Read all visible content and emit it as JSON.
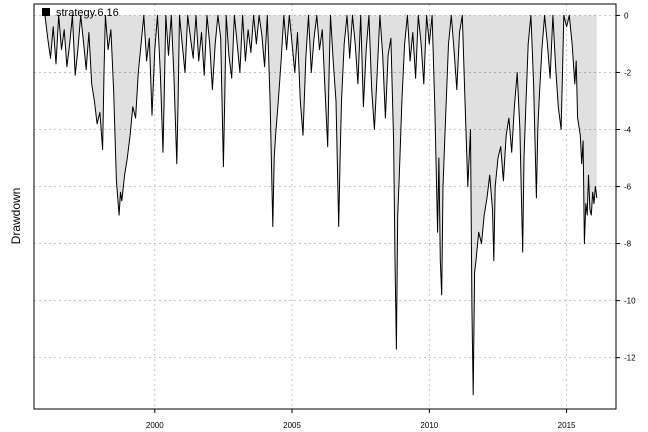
{
  "chart_data": {
    "type": "area",
    "ylabel": "Drawdown",
    "xlabel": "",
    "title": "",
    "legend": {
      "label": "strategy.6.16",
      "position": "top-left",
      "color": "#000000"
    },
    "x_range": [
      1995.6,
      2016.8
    ],
    "ylim": [
      -13.8,
      0.4
    ],
    "x_ticks": [
      2000,
      2005,
      2010,
      2015
    ],
    "y_ticks": [
      0,
      -2,
      -4,
      -6,
      -8,
      -10,
      -12
    ],
    "grid": true,
    "series": [
      {
        "name": "strategy.6.16",
        "color": "#000000",
        "points": [
          [
            1996.0,
            0
          ],
          [
            1996.1,
            -0.8
          ],
          [
            1996.2,
            -1.5
          ],
          [
            1996.3,
            -0.4
          ],
          [
            1996.4,
            -1.7
          ],
          [
            1996.5,
            0
          ],
          [
            1996.6,
            -1.2
          ],
          [
            1996.7,
            -0.5
          ],
          [
            1996.8,
            -1.8
          ],
          [
            1996.9,
            -1.0
          ],
          [
            1997.0,
            0
          ],
          [
            1997.1,
            -2.1
          ],
          [
            1997.2,
            -1.2
          ],
          [
            1997.3,
            0
          ],
          [
            1997.4,
            -0.9
          ],
          [
            1997.5,
            -1.9
          ],
          [
            1997.6,
            -0.6
          ],
          [
            1997.7,
            -2.4
          ],
          [
            1997.8,
            -3.0
          ],
          [
            1997.9,
            -3.8
          ],
          [
            1998.0,
            -3.4
          ],
          [
            1998.1,
            -4.7
          ],
          [
            1998.15,
            -2.0
          ],
          [
            1998.2,
            0
          ],
          [
            1998.3,
            -1.2
          ],
          [
            1998.4,
            -0.5
          ],
          [
            1998.5,
            -2.6
          ],
          [
            1998.6,
            -5.8
          ],
          [
            1998.7,
            -7.0
          ],
          [
            1998.75,
            -6.2
          ],
          [
            1998.8,
            -6.5
          ],
          [
            1998.9,
            -5.6
          ],
          [
            1999.0,
            -5.0
          ],
          [
            1999.1,
            -4.2
          ],
          [
            1999.2,
            -3.2
          ],
          [
            1999.3,
            -3.6
          ],
          [
            1999.4,
            -2.0
          ],
          [
            1999.5,
            -1.0
          ],
          [
            1999.6,
            0
          ],
          [
            1999.7,
            -1.6
          ],
          [
            1999.8,
            -0.8
          ],
          [
            1999.9,
            -3.5
          ],
          [
            2000.0,
            -1.2
          ],
          [
            2000.1,
            0
          ],
          [
            2000.2,
            -2.0
          ],
          [
            2000.3,
            -4.8
          ],
          [
            2000.35,
            -2.5
          ],
          [
            2000.4,
            0
          ],
          [
            2000.5,
            -1.4
          ],
          [
            2000.6,
            0
          ],
          [
            2000.7,
            -2.2
          ],
          [
            2000.8,
            -5.2
          ],
          [
            2000.85,
            -3.0
          ],
          [
            2000.9,
            0
          ],
          [
            2001.0,
            -1.0
          ],
          [
            2001.1,
            -2.0
          ],
          [
            2001.2,
            0
          ],
          [
            2001.3,
            -0.8
          ],
          [
            2001.4,
            -1.5
          ],
          [
            2001.5,
            0
          ],
          [
            2001.6,
            -1.6
          ],
          [
            2001.7,
            -0.6
          ],
          [
            2001.8,
            -2.1
          ],
          [
            2001.9,
            0
          ],
          [
            2002.0,
            -1.0
          ],
          [
            2002.1,
            -2.6
          ],
          [
            2002.2,
            -1.0
          ],
          [
            2002.3,
            0
          ],
          [
            2002.4,
            -0.8
          ],
          [
            2002.5,
            -5.3
          ],
          [
            2002.55,
            -2.8
          ],
          [
            2002.6,
            0
          ],
          [
            2002.7,
            -1.4
          ],
          [
            2002.8,
            -2.2
          ],
          [
            2002.9,
            0
          ],
          [
            2003.0,
            -1.0
          ],
          [
            2003.1,
            -2.0
          ],
          [
            2003.2,
            0
          ],
          [
            2003.3,
            -1.6
          ],
          [
            2003.4,
            -0.5
          ],
          [
            2003.5,
            -1.3
          ],
          [
            2003.6,
            0
          ],
          [
            2003.7,
            -1.0
          ],
          [
            2003.8,
            0
          ],
          [
            2003.9,
            -0.7
          ],
          [
            2004.0,
            -1.8
          ],
          [
            2004.1,
            0
          ],
          [
            2004.2,
            -3.0
          ],
          [
            2004.3,
            -7.4
          ],
          [
            2004.35,
            -5.0
          ],
          [
            2004.4,
            -4.2
          ],
          [
            2004.5,
            -3.0
          ],
          [
            2004.6,
            -1.6
          ],
          [
            2004.7,
            0
          ],
          [
            2004.8,
            -1.2
          ],
          [
            2004.9,
            0
          ],
          [
            2005.0,
            -1.0
          ],
          [
            2005.1,
            -2.0
          ],
          [
            2005.2,
            -0.6
          ],
          [
            2005.3,
            -3.0
          ],
          [
            2005.4,
            -4.2
          ],
          [
            2005.5,
            -1.5
          ],
          [
            2005.6,
            0
          ],
          [
            2005.7,
            -2.0
          ],
          [
            2005.8,
            -0.8
          ],
          [
            2005.9,
            0
          ],
          [
            2006.0,
            -1.2
          ],
          [
            2006.1,
            -0.5
          ],
          [
            2006.2,
            -2.6
          ],
          [
            2006.3,
            -4.6
          ],
          [
            2006.35,
            -2.0
          ],
          [
            2006.4,
            0
          ],
          [
            2006.5,
            -1.6
          ],
          [
            2006.6,
            -3.0
          ],
          [
            2006.7,
            -7.4
          ],
          [
            2006.75,
            -5.0
          ],
          [
            2006.8,
            -3.0
          ],
          [
            2006.9,
            -1.0
          ],
          [
            2007.0,
            0
          ],
          [
            2007.1,
            -1.5
          ],
          [
            2007.2,
            0
          ],
          [
            2007.3,
            -1.0
          ],
          [
            2007.4,
            -2.4
          ],
          [
            2007.5,
            0
          ],
          [
            2007.6,
            -3.2
          ],
          [
            2007.7,
            -1.2
          ],
          [
            2007.8,
            0
          ],
          [
            2007.9,
            -2.6
          ],
          [
            2008.0,
            -4.0
          ],
          [
            2008.1,
            -2.0
          ],
          [
            2008.2,
            0
          ],
          [
            2008.3,
            -1.4
          ],
          [
            2008.4,
            -3.6
          ],
          [
            2008.5,
            -1.4
          ],
          [
            2008.6,
            -0.8
          ],
          [
            2008.7,
            -4.4
          ],
          [
            2008.75,
            -8.6
          ],
          [
            2008.8,
            -11.7
          ],
          [
            2008.85,
            -7.0
          ],
          [
            2008.9,
            -5.8
          ],
          [
            2009.0,
            -3.0
          ],
          [
            2009.1,
            -1.0
          ],
          [
            2009.2,
            0
          ],
          [
            2009.3,
            -1.6
          ],
          [
            2009.4,
            -0.6
          ],
          [
            2009.5,
            -2.2
          ],
          [
            2009.6,
            0
          ],
          [
            2009.7,
            -1.0
          ],
          [
            2009.8,
            -2.4
          ],
          [
            2009.9,
            0
          ],
          [
            2010.0,
            -1.0
          ],
          [
            2010.1,
            0
          ],
          [
            2010.2,
            -3.2
          ],
          [
            2010.3,
            -7.6
          ],
          [
            2010.35,
            -5.0
          ],
          [
            2010.4,
            -8.6
          ],
          [
            2010.45,
            -9.8
          ],
          [
            2010.5,
            -6.0
          ],
          [
            2010.6,
            -3.4
          ],
          [
            2010.7,
            -1.0
          ],
          [
            2010.8,
            0
          ],
          [
            2010.9,
            -1.2
          ],
          [
            2011.0,
            -2.6
          ],
          [
            2011.1,
            -0.6
          ],
          [
            2011.2,
            0
          ],
          [
            2011.3,
            -3.0
          ],
          [
            2011.4,
            -6.0
          ],
          [
            2011.5,
            -4.0
          ],
          [
            2011.55,
            -10.2
          ],
          [
            2011.6,
            -13.3
          ],
          [
            2011.65,
            -9.0
          ],
          [
            2011.7,
            -8.6
          ],
          [
            2011.8,
            -7.6
          ],
          [
            2011.9,
            -8.0
          ],
          [
            2012.0,
            -7.0
          ],
          [
            2012.1,
            -6.4
          ],
          [
            2012.2,
            -5.6
          ],
          [
            2012.3,
            -6.8
          ],
          [
            2012.35,
            -8.6
          ],
          [
            2012.4,
            -6.0
          ],
          [
            2012.5,
            -5.0
          ],
          [
            2012.6,
            -4.6
          ],
          [
            2012.7,
            -5.8
          ],
          [
            2012.8,
            -4.2
          ],
          [
            2012.9,
            -3.6
          ],
          [
            2013.0,
            -4.8
          ],
          [
            2013.1,
            -3.2
          ],
          [
            2013.2,
            -2.0
          ],
          [
            2013.3,
            -4.0
          ],
          [
            2013.35,
            -6.2
          ],
          [
            2013.4,
            -8.3
          ],
          [
            2013.45,
            -5.0
          ],
          [
            2013.5,
            -3.6
          ],
          [
            2013.6,
            -1.0
          ],
          [
            2013.7,
            0
          ],
          [
            2013.8,
            -2.4
          ],
          [
            2013.9,
            -6.4
          ],
          [
            2013.95,
            -4.0
          ],
          [
            2014.0,
            -3.0
          ],
          [
            2014.1,
            -1.2
          ],
          [
            2014.2,
            0
          ],
          [
            2014.3,
            -1.0
          ],
          [
            2014.4,
            -2.2
          ],
          [
            2014.5,
            0
          ],
          [
            2014.6,
            -1.8
          ],
          [
            2014.7,
            -3.2
          ],
          [
            2014.8,
            -4.0
          ],
          [
            2014.85,
            -2.0
          ],
          [
            2014.9,
            0
          ],
          [
            2015.0,
            -0.4
          ],
          [
            2015.1,
            0
          ],
          [
            2015.2,
            -1.0
          ],
          [
            2015.3,
            -2.4
          ],
          [
            2015.35,
            -1.6
          ],
          [
            2015.4,
            -3.6
          ],
          [
            2015.5,
            -4.2
          ],
          [
            2015.55,
            -5.2
          ],
          [
            2015.6,
            -4.4
          ],
          [
            2015.65,
            -8.0
          ],
          [
            2015.7,
            -6.6
          ],
          [
            2015.75,
            -7.0
          ],
          [
            2015.8,
            -5.6
          ],
          [
            2015.85,
            -6.8
          ],
          [
            2015.9,
            -7.0
          ],
          [
            2015.95,
            -6.2
          ],
          [
            2016.0,
            -6.6
          ],
          [
            2016.05,
            -6.0
          ],
          [
            2016.1,
            -6.4
          ]
        ]
      }
    ]
  }
}
